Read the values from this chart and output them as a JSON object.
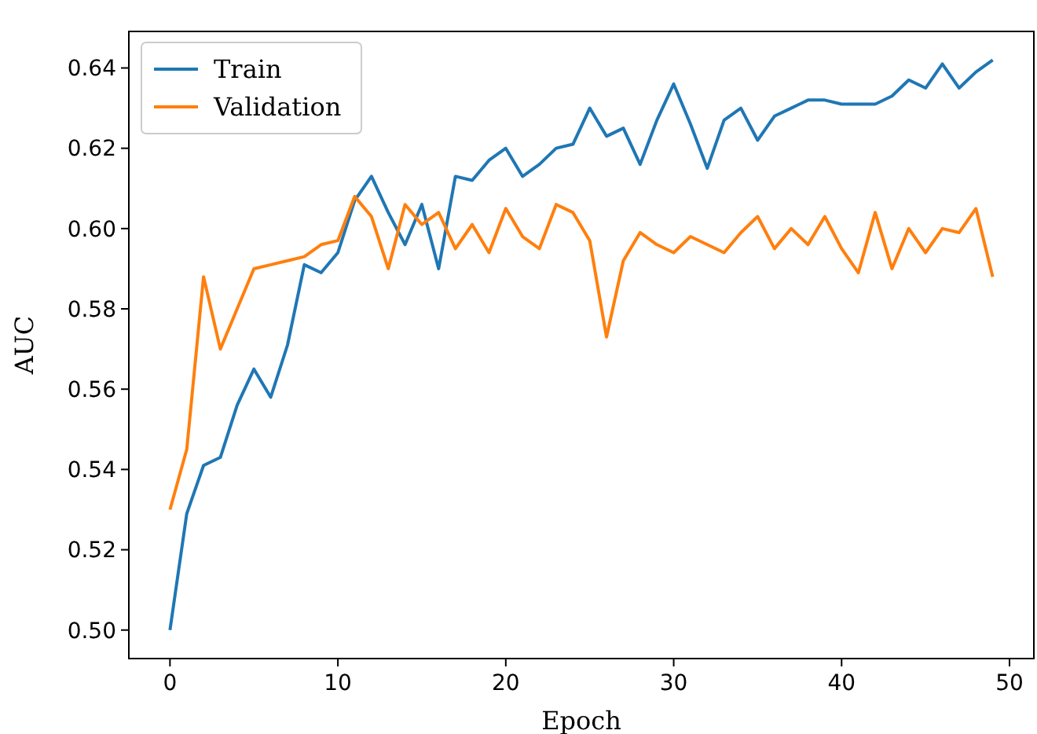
{
  "chart_data": {
    "type": "line",
    "xlabel": "Epoch",
    "ylabel": "AUC",
    "x": [
      0,
      1,
      2,
      3,
      4,
      5,
      6,
      7,
      8,
      9,
      10,
      11,
      12,
      13,
      14,
      15,
      16,
      17,
      18,
      19,
      20,
      21,
      22,
      23,
      24,
      25,
      26,
      27,
      28,
      29,
      30,
      31,
      32,
      33,
      34,
      35,
      36,
      37,
      38,
      39,
      40,
      41,
      42,
      43,
      44,
      45,
      46,
      47,
      48,
      49
    ],
    "xlim": [
      -2.45,
      51.45
    ],
    "xticks": [
      0,
      10,
      20,
      30,
      40,
      50
    ],
    "ylim": [
      0.4929,
      0.6491
    ],
    "yticks": [
      {
        "value": 0.5,
        "label": "0.50"
      },
      {
        "value": 0.52,
        "label": "0.52"
      },
      {
        "value": 0.54,
        "label": "0.54"
      },
      {
        "value": 0.56,
        "label": "0.56"
      },
      {
        "value": 0.58,
        "label": "0.58"
      },
      {
        "value": 0.6,
        "label": "0.60"
      },
      {
        "value": 0.62,
        "label": "0.62"
      },
      {
        "value": 0.64,
        "label": "0.64"
      }
    ],
    "legend": "top left",
    "grid": false,
    "series": [
      {
        "name": "Train",
        "color": "#1f77b4",
        "values": [
          0.5,
          0.529,
          0.541,
          0.543,
          0.556,
          0.565,
          0.558,
          0.571,
          0.591,
          0.589,
          0.594,
          0.607,
          0.613,
          0.604,
          0.596,
          0.606,
          0.59,
          0.613,
          0.612,
          0.617,
          0.62,
          0.613,
          0.616,
          0.62,
          0.621,
          0.63,
          0.623,
          0.625,
          0.616,
          0.627,
          0.636,
          0.626,
          0.615,
          0.627,
          0.63,
          0.622,
          0.628,
          0.63,
          0.632,
          0.632,
          0.631,
          0.631,
          0.631,
          0.633,
          0.637,
          0.635,
          0.641,
          0.635,
          0.639,
          0.642
        ]
      },
      {
        "name": "Validation",
        "color": "#ff7f0e",
        "values": [
          0.53,
          0.545,
          0.588,
          0.57,
          0.58,
          0.59,
          0.591,
          0.592,
          0.593,
          0.596,
          0.597,
          0.608,
          0.603,
          0.59,
          0.606,
          0.601,
          0.604,
          0.595,
          0.601,
          0.594,
          0.605,
          0.598,
          0.595,
          0.606,
          0.604,
          0.597,
          0.573,
          0.592,
          0.599,
          0.596,
          0.594,
          0.598,
          0.596,
          0.594,
          0.599,
          0.603,
          0.595,
          0.6,
          0.596,
          0.603,
          0.595,
          0.589,
          0.604,
          0.59,
          0.6,
          0.594,
          0.6,
          0.599,
          0.605,
          0.588
        ]
      }
    ]
  }
}
